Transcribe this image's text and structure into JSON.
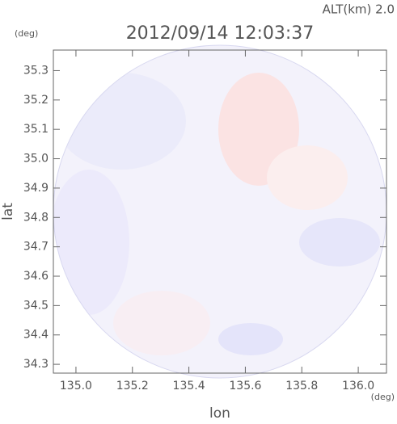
{
  "chart_data": {
    "type": "image",
    "title": "2012/09/14 12:03:37",
    "altitude_label": "ALT(km) 2.0",
    "y_unit": "(deg)",
    "x_unit": "(deg)",
    "xlabel": "lon",
    "ylabel": "lat",
    "xlim": [
      134.92,
      136.1
    ],
    "ylim": [
      34.27,
      35.37
    ],
    "xticks": [
      {
        "value": 135.0,
        "label": "135.0"
      },
      135.2,
      135.4,
      135.6,
      135.8,
      {
        "value": 136.0,
        "label": "136.0"
      }
    ],
    "yticks": [
      34.3,
      34.4,
      34.5,
      34.6,
      34.7,
      34.8,
      34.9,
      {
        "value": 35.0,
        "label": "35.0"
      },
      35.1,
      35.2,
      35.3
    ]
  }
}
